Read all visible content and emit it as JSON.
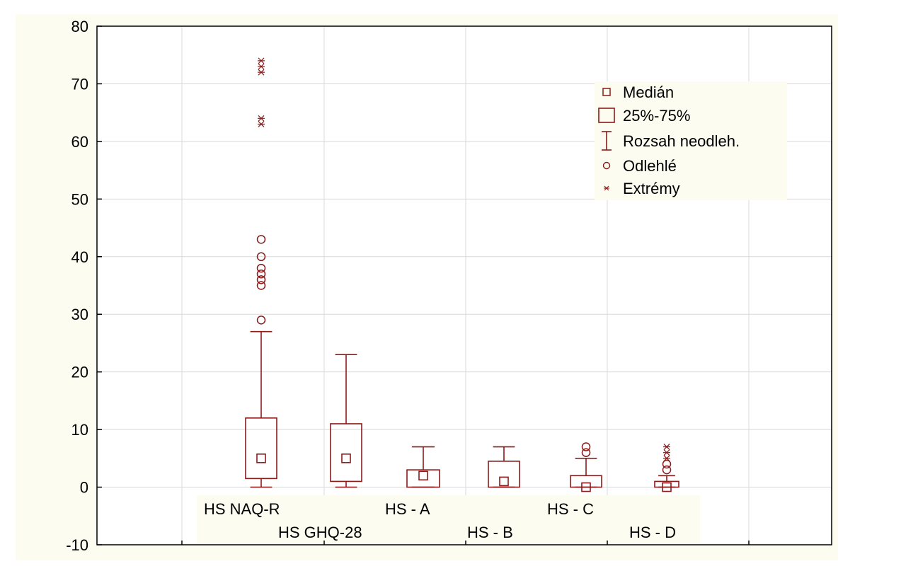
{
  "chart_data": {
    "type": "boxplot",
    "ylim": [
      -10,
      80
    ],
    "yticks": [
      -10,
      0,
      10,
      20,
      30,
      40,
      50,
      60,
      70,
      80
    ],
    "grid": true,
    "legend_position": "top-right",
    "colors": {
      "series": "#8b1a1a",
      "axis": "#000000",
      "grid": "#d8d8d8",
      "panel": "#fdfcf0",
      "plot_bg": "#ffffff"
    },
    "legend": [
      {
        "symbol": "median",
        "label": "Medián"
      },
      {
        "symbol": "box",
        "label": "25%-75%"
      },
      {
        "symbol": "whisker",
        "label": "Rozsah neodleh."
      },
      {
        "symbol": "outlier",
        "label": "Odlehlé"
      },
      {
        "symbol": "extreme",
        "label": "Extrémy"
      }
    ],
    "categories": [
      "HS NAQ-R",
      "HS GHQ-28",
      "HS - A",
      "HS - B",
      "HS - C",
      "HS - D"
    ],
    "boxes": [
      {
        "label": "HS NAQ-R",
        "median": 5,
        "q1": 1.5,
        "q3": 12,
        "whisker_low": 0,
        "whisker_high": 27,
        "outliers": [
          29,
          35,
          36,
          37,
          38,
          40,
          43
        ],
        "extremes": [
          63,
          64,
          72,
          73,
          74
        ]
      },
      {
        "label": "HS GHQ-28",
        "median": 5,
        "q1": 1,
        "q3": 11,
        "whisker_low": 0,
        "whisker_high": 23,
        "outliers": [],
        "extremes": []
      },
      {
        "label": "HS - A",
        "median": 2,
        "q1": 0,
        "q3": 3,
        "whisker_low": 0,
        "whisker_high": 7,
        "outliers": [],
        "extremes": []
      },
      {
        "label": "HS - B",
        "median": 1,
        "q1": 0,
        "q3": 4.5,
        "whisker_low": 0,
        "whisker_high": 7,
        "outliers": [],
        "extremes": []
      },
      {
        "label": "HS - C",
        "median": 0,
        "q1": 0,
        "q3": 2,
        "whisker_low": 0,
        "whisker_high": 5,
        "outliers": [
          6,
          7
        ],
        "extremes": []
      },
      {
        "label": "HS - D",
        "median": 0,
        "q1": 0,
        "q3": 1,
        "whisker_low": 0,
        "whisker_high": 2,
        "outliers": [
          3,
          4
        ],
        "extremes": [
          5,
          6,
          7
        ]
      }
    ]
  }
}
